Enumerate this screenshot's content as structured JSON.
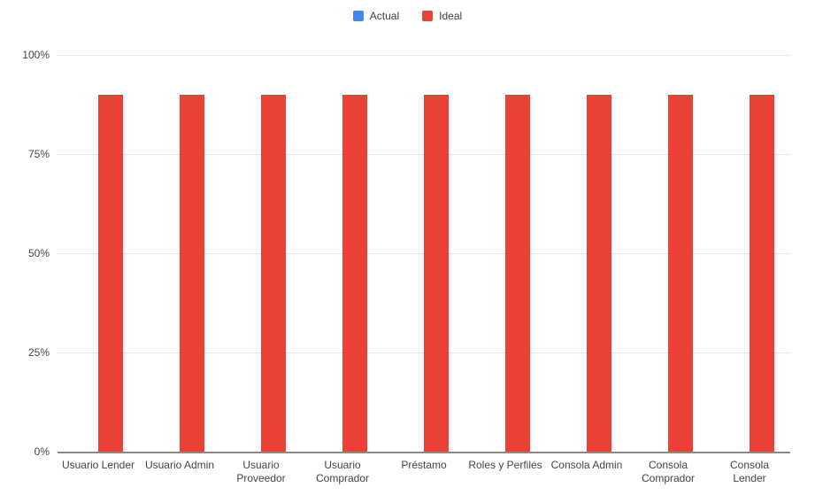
{
  "chart_data": {
    "type": "bar",
    "title": "",
    "xlabel": "",
    "ylabel": "",
    "categories": [
      "Usuario Lender",
      "Usuario Admin",
      "Usuario Proveedor",
      "Usuario Comprador",
      "Préstamo",
      "Roles y Perfiles",
      "Consola Admin",
      "Consola Comprador",
      "Consola Lender"
    ],
    "categories_display_lines": [
      [
        "Usuario Lender"
      ],
      [
        "Usuario Admin"
      ],
      [
        "Usuario",
        "Proveedor"
      ],
      [
        "Usuario",
        "Comprador"
      ],
      [
        "Préstamo"
      ],
      [
        "Roles y Perfiles"
      ],
      [
        "Consola Admin"
      ],
      [
        "Consola",
        "Comprador"
      ],
      [
        "Consola",
        "Lender"
      ]
    ],
    "series": [
      {
        "name": "Actual",
        "color": "#4285f4",
        "values": [
          0,
          0,
          0,
          0,
          0,
          0,
          0,
          0,
          0
        ]
      },
      {
        "name": "Ideal",
        "color": "#ea4335",
        "values": [
          90,
          90,
          90,
          90,
          90,
          90,
          90,
          90,
          90
        ]
      }
    ],
    "ylim": [
      0,
      100
    ],
    "yticks": [
      {
        "value": 0,
        "label": "0%"
      },
      {
        "value": 25,
        "label": "25%"
      },
      {
        "value": 50,
        "label": "50%"
      },
      {
        "value": 75,
        "label": "75%"
      },
      {
        "value": 100,
        "label": "100%"
      }
    ],
    "legend_position": "top",
    "grid": true
  },
  "colors": {
    "background": "#ffffff",
    "gridline": "#e6e6e6",
    "axis_line": "#8a8a8a",
    "text": "#444444"
  }
}
